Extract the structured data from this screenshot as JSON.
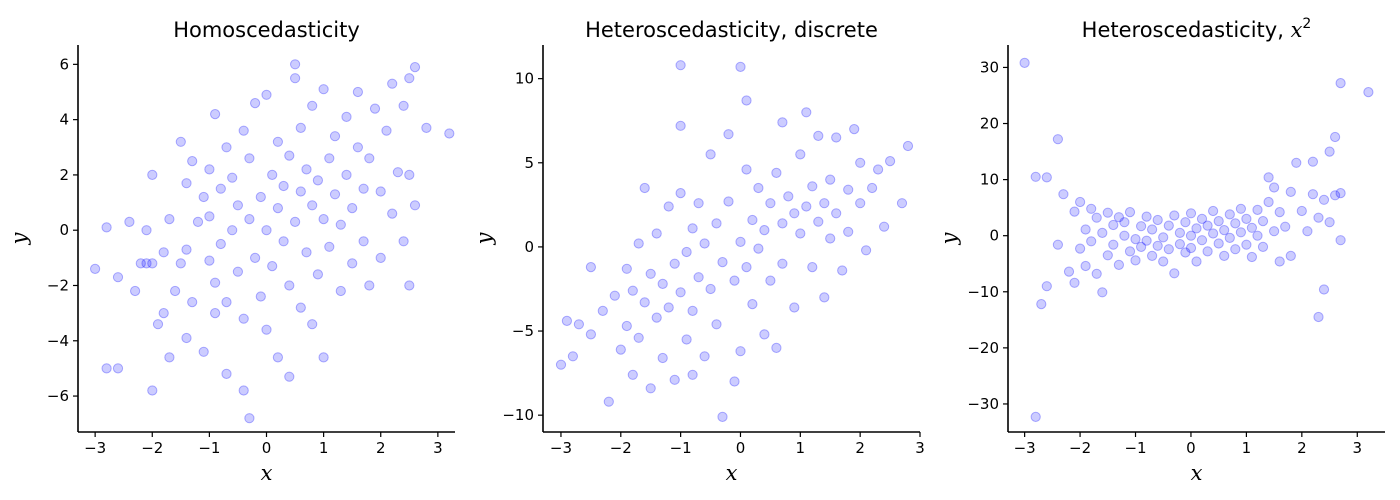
{
  "colors": {
    "point_fill": "#0000ff",
    "axes": "#000000"
  },
  "chart_data": [
    {
      "type": "scatter",
      "title": "Homoscedasticity",
      "xlabel": "x",
      "ylabel": "y",
      "xlim": [
        -3.3,
        3.3
      ],
      "ylim": [
        -7.3,
        6.7
      ],
      "xticks": [
        -3,
        -2,
        -1,
        0,
        1,
        2,
        3
      ],
      "xtick_labels": [
        "−3",
        "−2",
        "−1",
        "0",
        "1",
        "2",
        "3"
      ],
      "yticks": [
        -6,
        -4,
        -2,
        0,
        2,
        4,
        6
      ],
      "ytick_labels": [
        "−6",
        "−4",
        "−2",
        "0",
        "2",
        "4",
        "6"
      ],
      "grid": false,
      "points": [
        [
          -3.0,
          -1.4
        ],
        [
          -2.8,
          0.1
        ],
        [
          -2.8,
          -5.0
        ],
        [
          -2.6,
          -5.0
        ],
        [
          -2.6,
          -1.7
        ],
        [
          -2.4,
          0.3
        ],
        [
          -2.3,
          -2.2
        ],
        [
          -2.2,
          -1.2
        ],
        [
          -2.1,
          -1.2
        ],
        [
          -2.1,
          0.0
        ],
        [
          -2.0,
          -5.8
        ],
        [
          -2.0,
          -1.2
        ],
        [
          -2.0,
          2.0
        ],
        [
          -1.9,
          -3.4
        ],
        [
          -1.8,
          -3.0
        ],
        [
          -1.8,
          -0.8
        ],
        [
          -1.7,
          -4.6
        ],
        [
          -1.7,
          0.4
        ],
        [
          -1.6,
          -2.2
        ],
        [
          -1.5,
          -1.2
        ],
        [
          -1.5,
          3.2
        ],
        [
          -1.4,
          -3.9
        ],
        [
          -1.4,
          1.7
        ],
        [
          -1.4,
          -0.7
        ],
        [
          -1.3,
          -2.6
        ],
        [
          -1.3,
          2.5
        ],
        [
          -1.2,
          0.3
        ],
        [
          -1.1,
          -4.4
        ],
        [
          -1.1,
          1.2
        ],
        [
          -1.0,
          -1.1
        ],
        [
          -1.0,
          2.2
        ],
        [
          -1.0,
          0.5
        ],
        [
          -0.9,
          -3.0
        ],
        [
          -0.9,
          4.2
        ],
        [
          -0.9,
          -1.9
        ],
        [
          -0.8,
          1.5
        ],
        [
          -0.8,
          -0.5
        ],
        [
          -0.7,
          -5.2
        ],
        [
          -0.7,
          -2.6
        ],
        [
          -0.7,
          3.0
        ],
        [
          -0.6,
          0.0
        ],
        [
          -0.6,
          1.9
        ],
        [
          -0.5,
          -1.5
        ],
        [
          -0.5,
          0.9
        ],
        [
          -0.4,
          -5.8
        ],
        [
          -0.4,
          3.6
        ],
        [
          -0.4,
          -3.2
        ],
        [
          -0.3,
          -6.8
        ],
        [
          -0.3,
          0.4
        ],
        [
          -0.3,
          2.6
        ],
        [
          -0.2,
          -1.0
        ],
        [
          -0.2,
          4.6
        ],
        [
          -0.1,
          -2.4
        ],
        [
          -0.1,
          1.2
        ],
        [
          0.0,
          0.0
        ],
        [
          0.0,
          4.9
        ],
        [
          0.0,
          -3.6
        ],
        [
          0.1,
          2.0
        ],
        [
          0.1,
          -1.3
        ],
        [
          0.2,
          0.8
        ],
        [
          0.2,
          3.2
        ],
        [
          0.2,
          -4.6
        ],
        [
          0.3,
          -0.4
        ],
        [
          0.3,
          1.6
        ],
        [
          0.4,
          -2.0
        ],
        [
          0.4,
          2.7
        ],
        [
          0.4,
          -5.3
        ],
        [
          0.5,
          6.0
        ],
        [
          0.5,
          0.3
        ],
        [
          0.5,
          5.5
        ],
        [
          0.6,
          -2.8
        ],
        [
          0.6,
          1.4
        ],
        [
          0.6,
          3.7
        ],
        [
          0.7,
          -0.8
        ],
        [
          0.7,
          2.2
        ],
        [
          0.8,
          0.9
        ],
        [
          0.8,
          -3.4
        ],
        [
          0.8,
          4.5
        ],
        [
          0.9,
          1.8
        ],
        [
          0.9,
          -1.6
        ],
        [
          1.0,
          5.1
        ],
        [
          1.0,
          0.4
        ],
        [
          1.0,
          -4.6
        ],
        [
          1.1,
          2.6
        ],
        [
          1.1,
          -0.6
        ],
        [
          1.2,
          1.3
        ],
        [
          1.2,
          3.4
        ],
        [
          1.3,
          -2.2
        ],
        [
          1.3,
          0.2
        ],
        [
          1.4,
          2.0
        ],
        [
          1.4,
          4.1
        ],
        [
          1.5,
          -1.2
        ],
        [
          1.5,
          0.8
        ],
        [
          1.6,
          3.0
        ],
        [
          1.6,
          5.0
        ],
        [
          1.7,
          -0.4
        ],
        [
          1.7,
          1.5
        ],
        [
          1.8,
          2.6
        ],
        [
          1.8,
          -2.0
        ],
        [
          1.9,
          4.4
        ],
        [
          2.0,
          1.4
        ],
        [
          2.0,
          -1.0
        ],
        [
          2.1,
          3.6
        ],
        [
          2.2,
          0.6
        ],
        [
          2.2,
          5.3
        ],
        [
          2.3,
          2.1
        ],
        [
          2.4,
          -0.4
        ],
        [
          2.4,
          4.5
        ],
        [
          2.5,
          -2.0
        ],
        [
          2.5,
          2.0
        ],
        [
          2.5,
          5.5
        ],
        [
          2.6,
          0.9
        ],
        [
          2.6,
          5.9
        ],
        [
          2.8,
          3.7
        ],
        [
          3.2,
          3.5
        ]
      ]
    },
    {
      "type": "scatter",
      "title": "Heteroscedasticity, discrete",
      "xlabel": "x",
      "ylabel": "y",
      "xlim": [
        -3.3,
        3.0
      ],
      "ylim": [
        -11.0,
        12.0
      ],
      "xticks": [
        -3,
        -2,
        -1,
        0,
        1,
        2,
        3
      ],
      "xtick_labels": [
        "−3",
        "−2",
        "−1",
        "0",
        "1",
        "2",
        "3"
      ],
      "yticks": [
        -10,
        -5,
        0,
        5,
        10
      ],
      "ytick_labels": [
        "−10",
        "−5",
        "0",
        "5",
        "10"
      ],
      "grid": false,
      "points": [
        [
          -3.0,
          -7.0
        ],
        [
          -2.9,
          -4.4
        ],
        [
          -2.8,
          -6.5
        ],
        [
          -2.7,
          -4.6
        ],
        [
          -2.5,
          -5.2
        ],
        [
          -2.5,
          -1.2
        ],
        [
          -2.3,
          -3.8
        ],
        [
          -2.2,
          -9.2
        ],
        [
          -2.1,
          -2.9
        ],
        [
          -2.0,
          -6.1
        ],
        [
          -1.9,
          -1.3
        ],
        [
          -1.9,
          -4.7
        ],
        [
          -1.8,
          -7.6
        ],
        [
          -1.8,
          -2.6
        ],
        [
          -1.7,
          0.2
        ],
        [
          -1.7,
          -5.4
        ],
        [
          -1.6,
          -3.3
        ],
        [
          -1.6,
          3.5
        ],
        [
          -1.5,
          -8.4
        ],
        [
          -1.5,
          -1.6
        ],
        [
          -1.4,
          -4.2
        ],
        [
          -1.4,
          0.8
        ],
        [
          -1.3,
          -6.6
        ],
        [
          -1.3,
          -2.2
        ],
        [
          -1.2,
          2.4
        ],
        [
          -1.2,
          -3.6
        ],
        [
          -1.1,
          -7.9
        ],
        [
          -1.1,
          -1.0
        ],
        [
          -1.0,
          10.8
        ],
        [
          -1.0,
          7.2
        ],
        [
          -1.0,
          -2.7
        ],
        [
          -1.0,
          3.2
        ],
        [
          -0.9,
          -5.5
        ],
        [
          -0.9,
          -0.3
        ],
        [
          -0.8,
          -7.6
        ],
        [
          -0.8,
          1.1
        ],
        [
          -0.8,
          -3.8
        ],
        [
          -0.7,
          -1.8
        ],
        [
          -0.7,
          2.6
        ],
        [
          -0.6,
          -6.5
        ],
        [
          -0.6,
          0.2
        ],
        [
          -0.5,
          5.5
        ],
        [
          -0.5,
          -2.5
        ],
        [
          -0.4,
          -4.6
        ],
        [
          -0.4,
          1.4
        ],
        [
          -0.3,
          -10.1
        ],
        [
          -0.3,
          -0.9
        ],
        [
          -0.2,
          6.7
        ],
        [
          -0.2,
          2.7
        ],
        [
          -0.1,
          -2.0
        ],
        [
          -0.1,
          -8.0
        ],
        [
          0.0,
          10.7
        ],
        [
          0.0,
          0.3
        ],
        [
          0.0,
          -6.2
        ],
        [
          0.1,
          8.7
        ],
        [
          0.1,
          -1.2
        ],
        [
          0.1,
          4.6
        ],
        [
          0.2,
          -3.4
        ],
        [
          0.2,
          1.6
        ],
        [
          0.3,
          -0.1
        ],
        [
          0.3,
          3.5
        ],
        [
          0.4,
          -5.2
        ],
        [
          0.4,
          1.0
        ],
        [
          0.5,
          2.6
        ],
        [
          0.5,
          -2.0
        ],
        [
          0.6,
          -6.0
        ],
        [
          0.6,
          4.4
        ],
        [
          0.7,
          7.4
        ],
        [
          0.7,
          1.4
        ],
        [
          0.7,
          -1.0
        ],
        [
          0.8,
          3.0
        ],
        [
          0.9,
          -3.6
        ],
        [
          0.9,
          2.0
        ],
        [
          1.0,
          0.8
        ],
        [
          1.0,
          5.5
        ],
        [
          1.1,
          8.0
        ],
        [
          1.1,
          2.4
        ],
        [
          1.2,
          -1.2
        ],
        [
          1.2,
          3.6
        ],
        [
          1.3,
          1.5
        ],
        [
          1.3,
          6.6
        ],
        [
          1.4,
          -3.0
        ],
        [
          1.4,
          2.6
        ],
        [
          1.5,
          0.5
        ],
        [
          1.5,
          4.0
        ],
        [
          1.6,
          6.5
        ],
        [
          1.6,
          2.0
        ],
        [
          1.7,
          -1.4
        ],
        [
          1.8,
          3.4
        ],
        [
          1.8,
          0.9
        ],
        [
          1.9,
          7.0
        ],
        [
          2.0,
          2.6
        ],
        [
          2.0,
          5.0
        ],
        [
          2.1,
          -0.2
        ],
        [
          2.2,
          3.5
        ],
        [
          2.3,
          4.6
        ],
        [
          2.4,
          1.2
        ],
        [
          2.5,
          5.1
        ],
        [
          2.7,
          2.6
        ],
        [
          2.8,
          6.0
        ]
      ]
    },
    {
      "type": "scatter",
      "title": "Heteroscedasticity, x²",
      "title_text": "Heteroscedasticity, ",
      "title_math": "x",
      "title_sup": "2",
      "xlabel": "x",
      "ylabel": "y",
      "xlim": [
        -3.3,
        3.5
      ],
      "ylim": [
        -35.0,
        34.0
      ],
      "xticks": [
        -3,
        -2,
        -1,
        0,
        1,
        2,
        3
      ],
      "xtick_labels": [
        "−3",
        "−2",
        "−1",
        "0",
        "1",
        "2",
        "3"
      ],
      "yticks": [
        -30,
        -20,
        -10,
        0,
        10,
        20,
        30
      ],
      "ytick_labels": [
        "−30",
        "−20",
        "−10",
        "0",
        "10",
        "20",
        "30"
      ],
      "grid": false,
      "points": [
        [
          -3.0,
          30.8
        ],
        [
          -2.8,
          -32.3
        ],
        [
          -2.8,
          10.5
        ],
        [
          -2.7,
          -12.2
        ],
        [
          -2.6,
          10.4
        ],
        [
          -2.6,
          -9.0
        ],
        [
          -2.4,
          17.2
        ],
        [
          -2.4,
          -1.6
        ],
        [
          -2.3,
          7.4
        ],
        [
          -2.2,
          -6.4
        ],
        [
          -2.1,
          4.3
        ],
        [
          -2.1,
          -8.4
        ],
        [
          -2.0,
          6.0
        ],
        [
          -2.0,
          -2.3
        ],
        [
          -1.9,
          1.1
        ],
        [
          -1.9,
          -5.4
        ],
        [
          -1.8,
          4.8
        ],
        [
          -1.8,
          -1.0
        ],
        [
          -1.7,
          3.2
        ],
        [
          -1.7,
          -6.8
        ],
        [
          -1.6,
          -10.1
        ],
        [
          -1.6,
          0.5
        ],
        [
          -1.5,
          4.1
        ],
        [
          -1.5,
          -3.5
        ],
        [
          -1.4,
          1.9
        ],
        [
          -1.4,
          -1.6
        ],
        [
          -1.3,
          3.3
        ],
        [
          -1.3,
          -5.2
        ],
        [
          -1.2,
          0.0
        ],
        [
          -1.2,
          2.4
        ],
        [
          -1.1,
          -2.8
        ],
        [
          -1.1,
          4.2
        ],
        [
          -1.0,
          -0.6
        ],
        [
          -1.0,
          -4.4
        ],
        [
          -0.9,
          1.7
        ],
        [
          -0.9,
          -2.0
        ],
        [
          -0.8,
          3.4
        ],
        [
          -0.8,
          -0.9
        ],
        [
          -0.7,
          -3.6
        ],
        [
          -0.7,
          1.1
        ],
        [
          -0.6,
          -1.8
        ],
        [
          -0.6,
          2.8
        ],
        [
          -0.5,
          -0.3
        ],
        [
          -0.5,
          -4.6
        ],
        [
          -0.4,
          1.8
        ],
        [
          -0.4,
          -2.4
        ],
        [
          -0.3,
          3.6
        ],
        [
          -0.3,
          -6.7
        ],
        [
          -0.2,
          0.5
        ],
        [
          -0.2,
          -1.5
        ],
        [
          -0.1,
          2.4
        ],
        [
          -0.1,
          -3.0
        ],
        [
          0.0,
          0.0
        ],
        [
          0.0,
          4.0
        ],
        [
          0.0,
          -2.2
        ],
        [
          0.1,
          1.3
        ],
        [
          0.1,
          -4.6
        ],
        [
          0.2,
          3.0
        ],
        [
          0.2,
          -0.8
        ],
        [
          0.3,
          1.8
        ],
        [
          0.3,
          -2.8
        ],
        [
          0.4,
          4.4
        ],
        [
          0.4,
          0.4
        ],
        [
          0.5,
          -1.4
        ],
        [
          0.5,
          2.6
        ],
        [
          0.6,
          -3.6
        ],
        [
          0.6,
          1.0
        ],
        [
          0.7,
          3.8
        ],
        [
          0.7,
          -0.4
        ],
        [
          0.8,
          2.2
        ],
        [
          0.8,
          -2.4
        ],
        [
          0.9,
          4.8
        ],
        [
          0.9,
          0.6
        ],
        [
          1.0,
          -1.6
        ],
        [
          1.0,
          3.0
        ],
        [
          1.1,
          1.4
        ],
        [
          1.1,
          -3.8
        ],
        [
          1.2,
          4.6
        ],
        [
          1.2,
          0.0
        ],
        [
          1.3,
          2.6
        ],
        [
          1.3,
          -2.0
        ],
        [
          1.4,
          6.0
        ],
        [
          1.4,
          10.4
        ],
        [
          1.5,
          0.8
        ],
        [
          1.5,
          8.6
        ],
        [
          1.6,
          4.2
        ],
        [
          1.6,
          -4.6
        ],
        [
          1.7,
          1.6
        ],
        [
          1.8,
          7.8
        ],
        [
          1.8,
          -3.6
        ],
        [
          1.9,
          13.0
        ],
        [
          2.0,
          4.4
        ],
        [
          2.1,
          0.8
        ],
        [
          2.2,
          7.4
        ],
        [
          2.2,
          13.2
        ],
        [
          2.3,
          -14.5
        ],
        [
          2.3,
          3.2
        ],
        [
          2.4,
          -9.6
        ],
        [
          2.4,
          6.4
        ],
        [
          2.5,
          2.4
        ],
        [
          2.5,
          15.0
        ],
        [
          2.6,
          17.6
        ],
        [
          2.6,
          7.2
        ],
        [
          2.7,
          27.2
        ],
        [
          2.7,
          -0.8
        ],
        [
          2.7,
          7.6
        ],
        [
          3.2,
          25.6
        ]
      ]
    }
  ]
}
